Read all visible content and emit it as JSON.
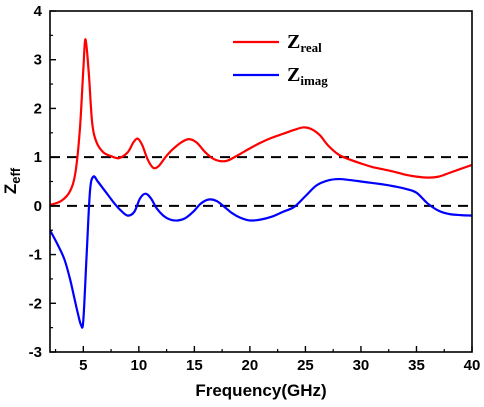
{
  "chart_data": {
    "type": "line",
    "xlabel": "Frequency(GHz)",
    "ylabel": {
      "main": "Z",
      "sub": "eff"
    },
    "xlim": [
      2,
      40
    ],
    "ylim": [
      -3,
      4
    ],
    "xticks": [
      5,
      10,
      15,
      20,
      25,
      30,
      35,
      40
    ],
    "yticks": [
      -3,
      -2,
      -1,
      0,
      1,
      2,
      3,
      4
    ],
    "grid": false,
    "legend_position": "top-right",
    "reference_lines": [
      1,
      0
    ],
    "series": [
      {
        "name": {
          "main": "Z",
          "sub": "real"
        },
        "color": "#ff0000",
        "x": [
          2,
          3,
          3.8,
          4.3,
          4.7,
          5.0,
          5.2,
          5.5,
          5.8,
          6.2,
          6.8,
          7.5,
          8.2,
          9.0,
          9.5,
          9.9,
          10.3,
          10.8,
          11.3,
          11.8,
          12.4,
          13.0,
          13.8,
          14.5,
          15.2,
          15.9,
          16.6,
          17.3,
          18.0,
          19.0,
          20.0,
          21.0,
          22.0,
          23.0,
          24.0,
          24.8,
          25.5,
          26.3,
          27.0,
          28.0,
          29.0,
          30.0,
          31.0,
          32.0,
          33.0,
          34.0,
          35.0,
          36.0,
          37.0,
          38.0,
          39.0,
          40.0
        ],
        "y": [
          0.02,
          0.1,
          0.3,
          0.7,
          1.6,
          2.8,
          3.42,
          2.7,
          1.7,
          1.3,
          1.1,
          1.02,
          0.98,
          1.1,
          1.3,
          1.38,
          1.25,
          0.95,
          0.78,
          0.82,
          1.0,
          1.15,
          1.3,
          1.37,
          1.3,
          1.12,
          0.98,
          0.92,
          0.93,
          1.05,
          1.18,
          1.3,
          1.4,
          1.48,
          1.56,
          1.61,
          1.58,
          1.45,
          1.25,
          1.05,
          0.95,
          0.87,
          0.8,
          0.75,
          0.7,
          0.64,
          0.6,
          0.58,
          0.6,
          0.68,
          0.76,
          0.84
        ]
      },
      {
        "name": {
          "main": "Z",
          "sub": "imag"
        },
        "color": "#0000ff",
        "x": [
          2,
          2.7,
          3.3,
          3.8,
          4.2,
          4.5,
          4.8,
          5.0,
          5.3,
          5.6,
          5.9,
          6.3,
          6.8,
          7.3,
          7.8,
          8.4,
          9.0,
          9.6,
          10.1,
          10.6,
          11.1,
          11.6,
          12.2,
          12.8,
          13.5,
          14.2,
          14.9,
          15.6,
          16.3,
          17.0,
          17.7,
          18.4,
          19.2,
          20.0,
          21.0,
          22.0,
          23.0,
          24.0,
          25.0,
          26.0,
          27.0,
          28.0,
          29.0,
          30.0,
          31.0,
          32.0,
          33.0,
          34.0,
          35.0,
          36.0,
          37.0,
          38.0,
          39.0,
          40.0
        ],
        "y": [
          -0.5,
          -0.8,
          -1.1,
          -1.5,
          -1.9,
          -2.2,
          -2.45,
          -2.35,
          -1.0,
          0.3,
          0.6,
          0.5,
          0.35,
          0.2,
          0.05,
          -0.1,
          -0.2,
          -0.12,
          0.15,
          0.25,
          0.15,
          -0.05,
          -0.2,
          -0.28,
          -0.3,
          -0.25,
          -0.12,
          0.05,
          0.13,
          0.1,
          -0.02,
          -0.15,
          -0.25,
          -0.3,
          -0.28,
          -0.22,
          -0.12,
          -0.02,
          0.2,
          0.42,
          0.52,
          0.55,
          0.53,
          0.5,
          0.47,
          0.44,
          0.4,
          0.35,
          0.27,
          0.05,
          -0.1,
          -0.17,
          -0.19,
          -0.2
        ]
      }
    ]
  }
}
